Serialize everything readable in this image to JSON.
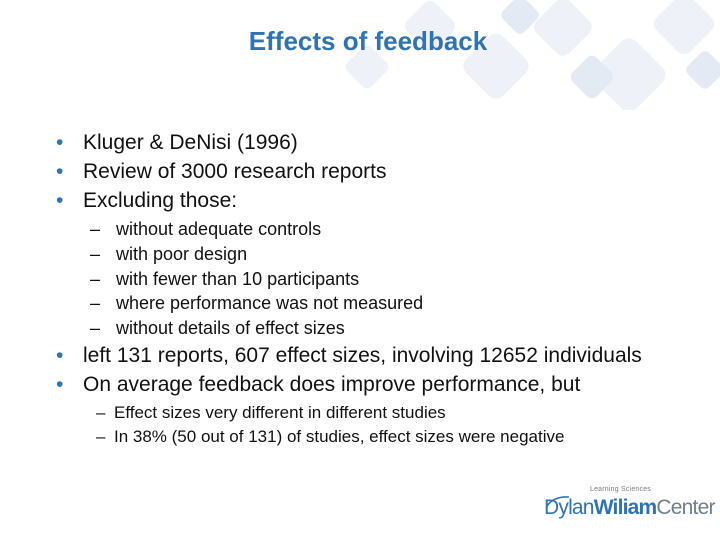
{
  "slide": {
    "title": "Effects of feedback",
    "bullets": [
      {
        "text": "Kluger & DeNisi (1996)",
        "sub": []
      },
      {
        "text": "Review of 3000 research reports",
        "sub": []
      },
      {
        "text": "Excluding those:",
        "sub": [
          "without adequate controls",
          "with poor design",
          "with fewer than 10 participants",
          "where performance was not measured",
          "without details of effect sizes"
        ]
      },
      {
        "text": "left 131 reports, 607 effect sizes, involving 12652 individuals",
        "sub": []
      },
      {
        "text": "On average feedback does improve performance, but",
        "sub": [
          "Effect sizes very different in different studies",
          "In 38% (50 out of 131) of studies, effect sizes were negative"
        ]
      }
    ],
    "bullet_glyph": "•",
    "dash_glyph": "–"
  },
  "logo": {
    "small_text": "Learning Sciences",
    "part1": "Dylan",
    "part2": "Wiliam",
    "part3": "Center"
  },
  "colors": {
    "accent": "#2e74b5",
    "text": "#111111"
  }
}
